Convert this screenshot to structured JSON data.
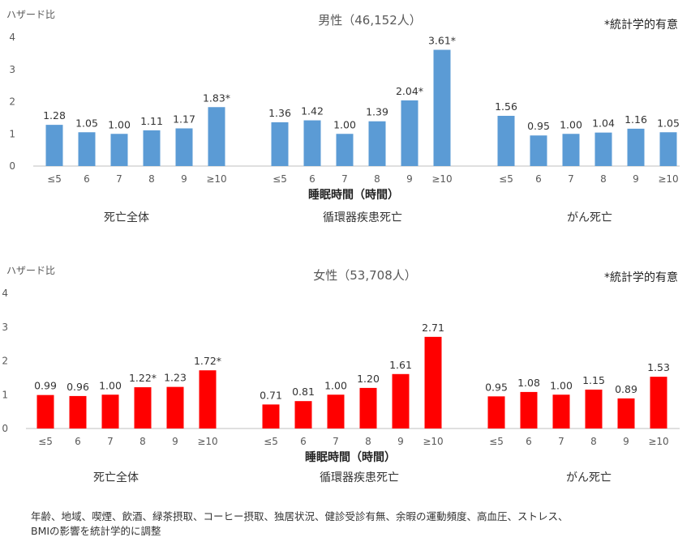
{
  "chart_data": [
    {
      "type": "bar",
      "title": "男性（46,152人）",
      "ylabel": "ハザード比",
      "xlabel": "睡眠時間（時間）",
      "significance_note": "*統計学的有意",
      "ylim": [
        0,
        4
      ],
      "yticks": [
        "0",
        "1",
        "2",
        "3",
        "4"
      ],
      "color": "#5b9bd5",
      "groups": [
        {
          "name": "死亡全体",
          "categories": [
            "≤5",
            "6",
            "7",
            "8",
            "9",
            "≥10"
          ],
          "values": [
            1.28,
            1.05,
            1.0,
            1.11,
            1.17,
            1.83
          ],
          "labels": [
            "1.28",
            "1.05",
            "1.00",
            "1.11",
            "1.17",
            "1.83*"
          ]
        },
        {
          "name": "循環器疾患死亡",
          "categories": [
            "≤5",
            "6",
            "7",
            "8",
            "9",
            "≥10"
          ],
          "values": [
            1.36,
            1.42,
            1.0,
            1.39,
            2.04,
            3.61
          ],
          "labels": [
            "1.36",
            "1.42",
            "1.00",
            "1.39",
            "2.04*",
            "3.61*"
          ]
        },
        {
          "name": "がん死亡",
          "categories": [
            "≤5",
            "6",
            "7",
            "8",
            "9",
            "≥10"
          ],
          "values": [
            1.56,
            0.95,
            1.0,
            1.04,
            1.16,
            1.05
          ],
          "labels": [
            "1.56",
            "0.95",
            "1.00",
            "1.04",
            "1.16",
            "1.05"
          ]
        }
      ]
    },
    {
      "type": "bar",
      "title": "女性（53,708人）",
      "ylabel": "ハザード比",
      "xlabel": "睡眠時間（時間）",
      "significance_note": "*統計学的有意",
      "ylim": [
        0,
        4
      ],
      "yticks": [
        "0",
        "1",
        "2",
        "3",
        "4"
      ],
      "color": "#ff0000",
      "groups": [
        {
          "name": "死亡全体",
          "categories": [
            "≤5",
            "6",
            "7",
            "8",
            "9",
            "≥10"
          ],
          "values": [
            0.99,
            0.96,
            1.0,
            1.22,
            1.23,
            1.72
          ],
          "labels": [
            "0.99",
            "0.96",
            "1.00",
            "1.22*",
            "1.23",
            "1.72*"
          ]
        },
        {
          "name": "循環器疾患死亡",
          "categories": [
            "≤5",
            "6",
            "7",
            "8",
            "9",
            "≥10"
          ],
          "values": [
            0.71,
            0.81,
            1.0,
            1.2,
            1.61,
            2.71
          ],
          "labels": [
            "0.71",
            "0.81",
            "1.00",
            "1.20",
            "1.61",
            "2.71"
          ]
        },
        {
          "name": "がん死亡",
          "categories": [
            "≤5",
            "6",
            "7",
            "8",
            "9",
            "≥10"
          ],
          "values": [
            0.95,
            1.08,
            1.0,
            1.15,
            0.89,
            1.53
          ],
          "labels": [
            "0.95",
            "1.08",
            "1.00",
            "1.15",
            "0.89",
            "1.53"
          ]
        }
      ]
    }
  ],
  "footnote": {
    "line1": "年齢、地域、喫煙、飲酒、緑茶摂取、コーヒー摂取、独居状況、健診受診有無、余暇の運動頻度、高血圧、ストレス、",
    "line2": "BMIの影響を統計学的に調整"
  }
}
